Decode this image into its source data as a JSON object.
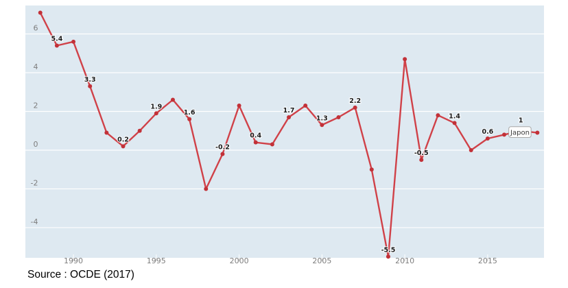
{
  "page": {
    "source_text": "Source : OCDE (2017)"
  },
  "chart_data": {
    "type": "line",
    "title": "",
    "xlabel": "",
    "ylabel": "",
    "x": [
      1988,
      1989,
      1990,
      1991,
      1992,
      1993,
      1994,
      1995,
      1996,
      1997,
      1998,
      1999,
      2000,
      2001,
      2002,
      2003,
      2004,
      2005,
      2006,
      2007,
      2008,
      2009,
      2010,
      2011,
      2012,
      2013,
      2014,
      2015,
      2016,
      2017,
      2018
    ],
    "series": [
      {
        "name": "Japon",
        "values": [
          7.1,
          5.4,
          5.6,
          3.3,
          0.9,
          0.2,
          1.0,
          1.9,
          2.6,
          1.6,
          -2.0,
          -0.2,
          2.3,
          0.4,
          0.3,
          1.7,
          2.3,
          1.3,
          1.7,
          2.2,
          -1.0,
          -5.5,
          4.7,
          -0.5,
          1.8,
          1.4,
          0.0,
          0.6,
          0.8,
          1.0,
          0.9
        ]
      }
    ],
    "point_labels": [
      "",
      "5.4",
      "",
      "3.3",
      "",
      "0.2",
      "",
      "1.9",
      "",
      "1.6",
      "",
      "-0.2",
      "",
      "0.4",
      "",
      "1.7",
      "",
      "1.3",
      "",
      "2.2",
      "",
      "-5.5",
      "",
      "-0.5",
      "",
      "1.4",
      "",
      "0.6",
      "",
      "1",
      ""
    ],
    "labeled_series_point": {
      "x": 2017,
      "label": "Japon"
    },
    "y_ticks": [
      6,
      4,
      2,
      0,
      -2,
      -4
    ],
    "x_ticks": [
      1990,
      1995,
      2000,
      2005,
      2010,
      2015
    ],
    "xlim": [
      1987.1,
      2018.4
    ],
    "ylim": [
      -5.56,
      7.47
    ],
    "grid": "horizontal",
    "legend_position": "tooltip-on-last-labeled-point",
    "colors": {
      "line": "#d04148",
      "point": "#c23138",
      "panel_background": "#dee9f1",
      "gridline": "#ffffff",
      "point_label": "#1c1c1c",
      "point_label_halo": "#ffffff",
      "axis_label": "#7d7d7d",
      "tick_below": "#cccccc",
      "tooltip_background": "#fdfdfd",
      "tooltip_border": "#a8a8a8",
      "tooltip_text": "#3a3a3a"
    }
  }
}
